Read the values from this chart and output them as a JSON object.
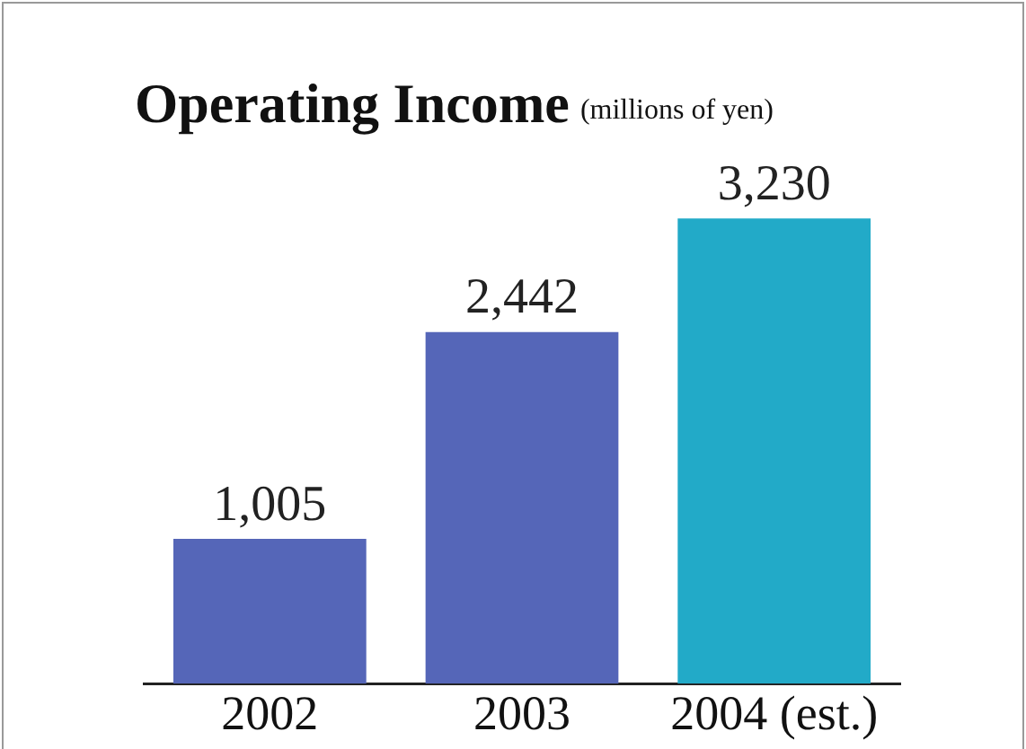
{
  "chart_data": {
    "type": "bar",
    "title": "Operating Income",
    "subtitle": "(millions of yen)",
    "categories": [
      "2002",
      "2003",
      "2004 (est.)"
    ],
    "values": [
      1005,
      2442,
      3230
    ],
    "value_labels": [
      "1,005",
      "2,442",
      "3,230"
    ],
    "colors": [
      "#5566b8",
      "#5566b8",
      "#22aac8"
    ],
    "tick_labels": "x",
    "grid": false,
    "legend": false
  }
}
